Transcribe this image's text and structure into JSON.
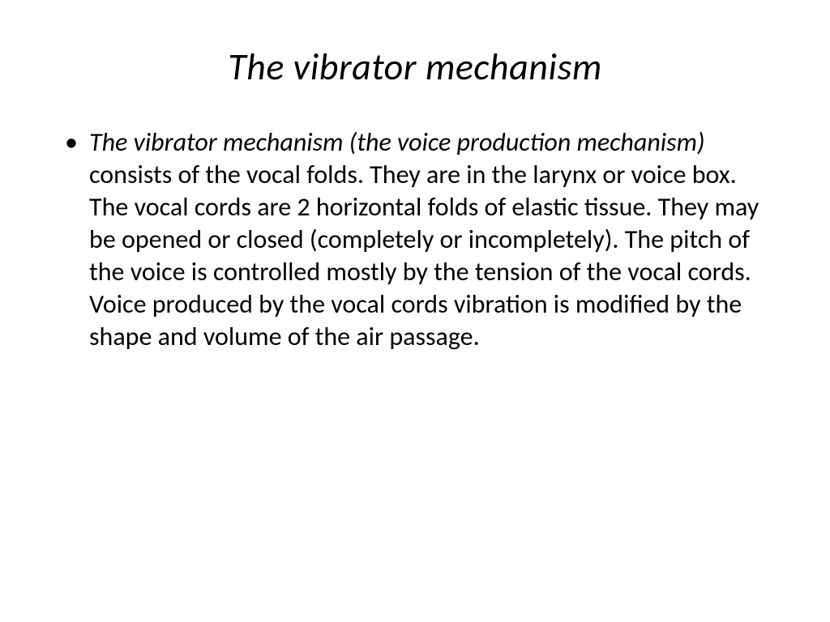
{
  "slide": {
    "title": "The vibrator mechanism",
    "title_fontsize": 46,
    "title_color": "#000000",
    "bullet": {
      "emph_part": "The vibrator mechanism (the voice production mechanism) ",
      "rest_part": "consists of the vocal folds. They are in the larynx or voice box. The vocal cords are 2 horizontal folds of elastic tissue. They may be opened or closed (completely or incompletely). The pitch of the voice is controlled mostly by the tension of the vocal cords. Voice produced by the vocal cords vibration is modified by the shape and volume of the air passage.",
      "fontsize": 32,
      "line_height": 1.25,
      "color": "#000000"
    },
    "background_color": "#ffffff"
  }
}
